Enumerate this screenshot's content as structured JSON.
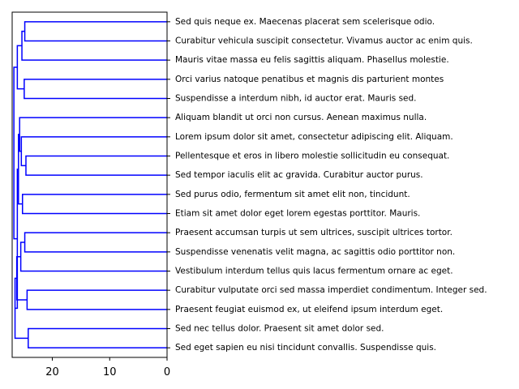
{
  "chart_data": {
    "type": "dendrogram",
    "orientation": "right",
    "title": "",
    "xlabel": "",
    "ylabel": "",
    "xlim": [
      27,
      0
    ],
    "x_ticks": [
      20,
      10,
      0
    ],
    "line_color": "#0000ff",
    "leaves": [
      "Sed quis neque ex. Maecenas placerat sem scelerisque odio.",
      "Curabitur vehicula suscipit consectetur. Vivamus auctor ac enim quis.",
      "Mauris vitae massa eu felis sagittis aliquam. Phasellus molestie.",
      "Orci varius natoque penatibus et magnis dis parturient montes",
      "Suspendisse a interdum nibh, id auctor erat. Mauris sed.",
      "Aliquam blandit ut orci non cursus. Aenean maximus nulla.",
      "Lorem ipsum dolor sit amet, consectetur adipiscing elit. Aliquam.",
      "Pellentesque et eros in libero molestie sollicitudin eu consequat.",
      "Sed tempor iaculis elit ac gravida. Curabitur auctor purus.",
      "Sed purus odio, fermentum sit amet elit non, tincidunt.",
      "Etiam sit amet dolor eget lorem egestas porttitor. Mauris.",
      "Praesent accumsan turpis ut sem ultrices, suscipit ultrices tortor.",
      "Suspendisse venenatis velit magna, ac sagittis odio porttitor non.",
      "Vestibulum interdum tellus quis lacus fermentum ornare ac eget.",
      "Curabitur vulputate orci sed massa imperdiet condimentum. Integer sed.",
      "Praesent feugiat euismod ex, ut eleifend ipsum interdum eget.",
      "Sed nec tellus dolor. Praesent sit amet dolor sed.",
      "Sed eget sapien eu nisi tincidunt convallis. Suspendisse quis."
    ],
    "merges": [
      {
        "left": 0,
        "right": 1,
        "distance": 24.8
      },
      {
        "left": 18,
        "right": 2,
        "distance": 25.3
      },
      {
        "left": 3,
        "right": 4,
        "distance": 24.9
      },
      {
        "left": 19,
        "right": 20,
        "distance": 26.1
      },
      {
        "left": 7,
        "right": 8,
        "distance": 24.6
      },
      {
        "left": 6,
        "right": 22,
        "distance": 25.4
      },
      {
        "left": 5,
        "right": 23,
        "distance": 25.7
      },
      {
        "left": 9,
        "right": 10,
        "distance": 25.2
      },
      {
        "left": 24,
        "right": 25,
        "distance": 25.9
      },
      {
        "left": 11,
        "right": 12,
        "distance": 24.8
      },
      {
        "left": 27,
        "right": 13,
        "distance": 25.5
      },
      {
        "left": 14,
        "right": 15,
        "distance": 24.4
      },
      {
        "left": 28,
        "right": 29,
        "distance": 26.2
      },
      {
        "left": 16,
        "right": 17,
        "distance": 24.2
      },
      {
        "left": 30,
        "right": 31,
        "distance": 26.5
      },
      {
        "left": 26,
        "right": 32,
        "distance": 26.1
      },
      {
        "left": 21,
        "right": 33,
        "distance": 26.7
      }
    ]
  }
}
